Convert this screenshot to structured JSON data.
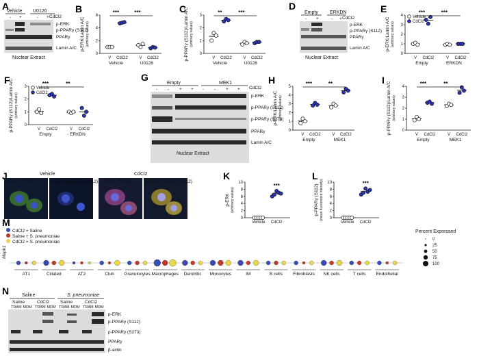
{
  "panels": {
    "A": {
      "letter": "A",
      "groups": [
        "Vehicle",
        "U0126"
      ],
      "treatment": "CdCl2",
      "signs": [
        "-",
        "+",
        "-",
        "+"
      ],
      "blots": [
        "p-ERK",
        "p-PPARγ (S112)",
        "PPARγ",
        "Lamin A/C"
      ],
      "caption": "Nuclear Extract"
    },
    "B": {
      "letter": "B",
      "ylabel": "p-ERK/Lamin A/C",
      "ysub": "(arbitrary values)",
      "yticks": [
        "0",
        "2",
        "4",
        "6"
      ],
      "sig": [
        "***",
        "***"
      ],
      "xlabels": [
        "V",
        "CdCl2",
        "V",
        "CdCl2"
      ],
      "groups": [
        "Vehicle",
        "U0126"
      ]
    },
    "C": {
      "letter": "C",
      "ylabel": "p-PPARγ (S112)/Lamin A/C",
      "ysub": "(arbitrary values)",
      "yticks": [
        "0",
        "1",
        "2",
        "3"
      ],
      "sig": [
        "**",
        "***"
      ],
      "xlabels": [
        "V",
        "CdCl2",
        "V",
        "CdCl2"
      ],
      "groups": [
        "Vehicle",
        "U0126"
      ]
    },
    "D": {
      "letter": "D",
      "groups": [
        "Empty",
        "ERKDN"
      ],
      "treatment": "CdCl2",
      "signs": [
        "-",
        "+",
        "-",
        "+"
      ],
      "blots": [
        "p-ERK",
        "p-PPARγ (S112)",
        "PPARγ",
        "Lamin A/C"
      ],
      "caption": "Nuclear Extract"
    },
    "E": {
      "letter": "E",
      "ylabel": "p-ERK/Lamin A/C",
      "ysub": "(arbitrary values)",
      "yticks": [
        "0",
        "1",
        "2",
        "3",
        "4"
      ],
      "sig": [
        "***",
        "***"
      ],
      "legend": [
        "Vehicle",
        "CdCl2"
      ],
      "xlabels": [
        "V",
        "CdCl2",
        "V",
        "CdCl2"
      ],
      "groups": [
        "Empty",
        "ERKDN"
      ]
    },
    "F": {
      "letter": "F",
      "ylabel": "p-PPARγ (S112)/Lamin A/C",
      "ysub": "(arbitrary values)",
      "yticks": [
        "0",
        "1",
        "2",
        "3"
      ],
      "sig": [
        "***",
        "**"
      ],
      "legend": [
        "Vehicle",
        "CdCl2"
      ],
      "xlabels": [
        "V",
        "CdCl2",
        "V",
        "CdCl2"
      ],
      "groups": [
        "Empty",
        "ERKDN"
      ]
    },
    "G": {
      "letter": "G",
      "groups": [
        "Empty",
        "MEK1"
      ],
      "treatment": "CdCl2",
      "signs": [
        "-",
        "-",
        "+",
        "+",
        "-",
        "-",
        "+",
        "+"
      ],
      "blots": [
        "p-ERK",
        "p-PPARγ (S112)",
        "p-PPARγ (S273)",
        "PPARγ",
        "Lamin A/C"
      ],
      "caption": "Nuclear Extract"
    },
    "H": {
      "letter": "H",
      "ylabel": "p-ERK/Lamin A/C",
      "ysub": "(arbitrary values)",
      "yticks": [
        "0",
        "1",
        "2",
        "3",
        "4",
        "5"
      ],
      "sig": [
        "***",
        "**"
      ],
      "xlabels": [
        "V",
        "CdCl2",
        "V",
        "CdCl2"
      ],
      "groups": [
        "Empty",
        "MEK1"
      ]
    },
    "I": {
      "letter": "I",
      "ylabel": "p-PPARγ (S112)/Lamin A/C",
      "ysub": "(arbitrary values)",
      "yticks": [
        "0",
        "1",
        "2",
        "3",
        "4"
      ],
      "sig": [
        "***",
        "**"
      ],
      "xlabels": [
        "V",
        "CdCl2",
        "V",
        "CdCl2"
      ],
      "groups": [
        "Empty",
        "MEK1"
      ]
    },
    "J": {
      "letter": "J",
      "conditions": [
        "Vehicle",
        "CdCl2"
      ],
      "stains": [
        "p-ERK",
        "PPARγ",
        "p-ERK",
        "p-PPARγ (S112)"
      ]
    },
    "K": {
      "letter": "K",
      "ylabel": "p-ERK",
      "ysub": "(arbitrary values)",
      "yticks": [
        "0",
        "2",
        "4",
        "6",
        "8",
        "10"
      ],
      "sig": "***",
      "xlabels": [
        "Vehicle",
        "CdCl2"
      ]
    },
    "L": {
      "letter": "L",
      "ylabel": "p-PPARγ (S112)",
      "ysub": "(mean fluorescent intensity)",
      "yticks": [
        "0",
        "2",
        "4",
        "6",
        "8",
        "10"
      ],
      "sig": "***",
      "xlabels": [
        "Vehicle",
        "CdCl2"
      ]
    },
    "M": {
      "letter": "M",
      "gene": "Mapk1",
      "legend": [
        "CdCl2 + Saline",
        "Saline + S. pneumoniae",
        "CdCl2 + S. pneumoniae"
      ],
      "size_title": "Percent Expressed",
      "size_values": [
        "0",
        "25",
        "50",
        "75",
        "100"
      ],
      "celltypes": [
        "AT1",
        "Ciliated",
        "AT2",
        "Club",
        "Granulocytes",
        "Macrophages",
        "Dendritic",
        "Monocytes",
        "IM",
        "B cells",
        "Fibroblasts",
        "NK cells",
        "T cells",
        "Endothelial"
      ]
    },
    "N": {
      "letter": "N",
      "groups": [
        "Saline",
        "S. pneumoniae"
      ],
      "subgroups": [
        "Saline",
        "CdCl2",
        "Saline",
        "CdCl2"
      ],
      "cells": [
        "TRAM",
        "MDM",
        "TRAM",
        "MDM",
        "TRAM",
        "MDM",
        "TRAM",
        "MDM"
      ],
      "blots": [
        "p-ERK",
        "p-PPARγ (S112)",
        "p-PPARγ (S273)",
        "PPARγ",
        "β-actin"
      ]
    }
  },
  "colors": {
    "vehicle": "#ffffff",
    "cdcl2": "#2b35b8",
    "m_blue": "#3a4bb0",
    "m_red": "#c0392b",
    "m_yellow": "#e8d84a"
  },
  "chart_data": [
    {
      "type": "scatter",
      "panel": "B",
      "categories": [
        "Vehicle V",
        "Vehicle CdCl2",
        "U0126 V",
        "U0126 CdCl2"
      ],
      "series": [
        {
          "values": [
            [
              1.0,
              1.0,
              1.0
            ],
            [
              4.7,
              4.8,
              4.9
            ],
            [
              1.3,
              1.0,
              1.5
            ],
            [
              0.8,
              1.0,
              0.9
            ]
          ]
        }
      ],
      "ylim": [
        0,
        6
      ]
    },
    {
      "type": "scatter",
      "panel": "C",
      "categories": [
        "Vehicle V",
        "Vehicle CdCl2",
        "U0126 V",
        "U0126 CdCl2"
      ],
      "series": [
        {
          "values": [
            [
              1.0,
              1.6,
              1.4
            ],
            [
              2.5,
              2.7,
              2.6
            ],
            [
              0.7,
              0.9,
              0.8
            ],
            [
              0.8,
              0.9,
              0.9
            ]
          ]
        }
      ],
      "ylim": [
        0,
        3
      ]
    },
    {
      "type": "scatter",
      "panel": "E",
      "categories": [
        "Empty V",
        "Empty CdCl2",
        "ERKDN V",
        "ERKDN CdCl2"
      ],
      "series": [
        {
          "values": [
            [
              1.0,
              1.1,
              0.9
            ],
            [
              3.5,
              3.1,
              3.8
            ],
            [
              0.9,
              1.0,
              0.9
            ],
            [
              1.0,
              1.0,
              1.0
            ]
          ]
        }
      ],
      "ylim": [
        0,
        4
      ]
    },
    {
      "type": "scatter",
      "panel": "F",
      "categories": [
        "Empty V",
        "Empty CdCl2",
        "ERKDN V",
        "ERKDN CdCl2"
      ],
      "series": [
        {
          "values": [
            [
              1.0,
              1.2,
              0.9
            ],
            [
              2.3,
              2.4,
              2.2
            ],
            [
              1.0,
              0.9,
              1.0
            ],
            [
              1.3,
              0.7,
              1.0
            ]
          ]
        }
      ],
      "ylim": [
        0,
        3
      ]
    },
    {
      "type": "scatter",
      "panel": "H",
      "categories": [
        "Empty V",
        "Empty CdCl2",
        "MEK1 V",
        "MEK1 CdCl2"
      ],
      "series": [
        {
          "values": [
            [
              0.8,
              1.3,
              1.0
            ],
            [
              2.8,
              3.1,
              2.9
            ],
            [
              2.6,
              3.0,
              2.8
            ],
            [
              4.3,
              4.7,
              4.5
            ]
          ]
        }
      ],
      "ylim": [
        0,
        5
      ]
    },
    {
      "type": "scatter",
      "panel": "I",
      "categories": [
        "Empty V",
        "Empty CdCl2",
        "MEK1 V",
        "MEK1 CdCl2"
      ],
      "series": [
        {
          "values": [
            [
              0.9,
              1.2,
              1.0
            ],
            [
              2.5,
              2.6,
              2.4
            ],
            [
              2.2,
              2.4,
              2.3
            ],
            [
              3.4,
              3.9,
              3.6
            ]
          ]
        }
      ],
      "ylim": [
        0,
        4
      ]
    },
    {
      "type": "scatter",
      "panel": "K",
      "categories": [
        "Vehicle",
        "CdCl2"
      ],
      "series": [
        {
          "values": [
            [
              0,
              0,
              0,
              0,
              0
            ],
            [
              6.0,
              6.5,
              7.5,
              7.0,
              6.8
            ]
          ]
        }
      ],
      "ylim": [
        0,
        10
      ]
    },
    {
      "type": "scatter",
      "panel": "L",
      "categories": [
        "Vehicle",
        "CdCl2"
      ],
      "series": [
        {
          "values": [
            [
              0,
              0,
              0,
              0,
              0
            ],
            [
              6.5,
              7.0,
              8.2,
              7.3,
              7.8
            ]
          ]
        }
      ],
      "ylim": [
        0,
        10
      ]
    }
  ]
}
